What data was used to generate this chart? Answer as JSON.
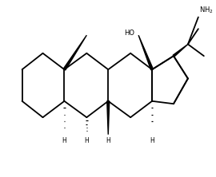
{
  "background_color": "#ffffff",
  "bond_color": "#000000",
  "text_color": "#000000",
  "line_width": 1.3,
  "figsize": [
    2.7,
    2.22
  ],
  "dpi": 100,
  "xlim": [
    0,
    10.5
  ],
  "ylim": [
    0,
    8.5
  ]
}
